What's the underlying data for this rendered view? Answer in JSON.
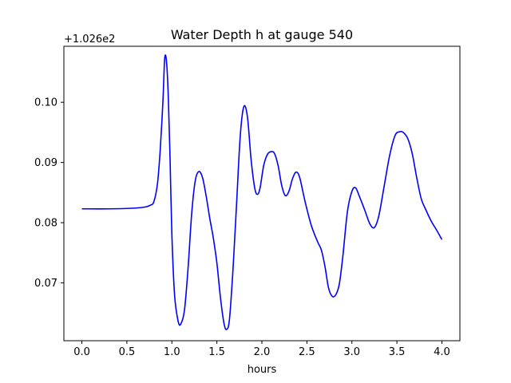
{
  "chart_data": {
    "type": "line",
    "title": "Water Depth h at gauge 540",
    "xlabel": "hours",
    "ylabel": "",
    "offset_label": "+1.026e2",
    "xlim": [
      -0.2,
      4.2
    ],
    "ylim": [
      0.0604,
      0.1093
    ],
    "xticks": [
      0.0,
      0.5,
      1.0,
      1.5,
      2.0,
      2.5,
      3.0,
      3.5,
      4.0
    ],
    "xtick_labels": [
      "0.0",
      "0.5",
      "1.0",
      "1.5",
      "2.0",
      "2.5",
      "3.0",
      "3.5",
      "4.0"
    ],
    "yticks": [
      0.07,
      0.08,
      0.09,
      0.1
    ],
    "ytick_labels": [
      "0.07",
      "0.08",
      "0.09",
      "0.10"
    ],
    "grid": false,
    "series": [
      {
        "color": "#0000ff",
        "x": [
          0.0,
          0.3,
          0.55,
          0.7,
          0.76,
          0.8,
          0.84,
          0.87,
          0.9,
          0.92,
          0.94,
          0.96,
          0.98,
          1.0,
          1.03,
          1.07,
          1.1,
          1.14,
          1.18,
          1.22,
          1.26,
          1.3,
          1.34,
          1.38,
          1.42,
          1.46,
          1.5,
          1.54,
          1.58,
          1.61,
          1.64,
          1.68,
          1.72,
          1.76,
          1.8,
          1.84,
          1.88,
          1.92,
          1.95,
          1.98,
          2.02,
          2.06,
          2.1,
          2.14,
          2.18,
          2.22,
          2.26,
          2.3,
          2.34,
          2.38,
          2.42,
          2.48,
          2.55,
          2.62,
          2.66,
          2.7,
          2.74,
          2.78,
          2.82,
          2.86,
          2.9,
          2.95,
          3.0,
          3.04,
          3.08,
          3.14,
          3.2,
          3.25,
          3.3,
          3.36,
          3.42,
          3.48,
          3.53,
          3.57,
          3.62,
          3.67,
          3.72,
          3.77,
          3.82,
          3.88,
          3.94,
          4.0
        ],
        "y": [
          0.0823,
          0.0823,
          0.0824,
          0.0826,
          0.0829,
          0.0835,
          0.0865,
          0.092,
          0.1,
          0.1072,
          0.1068,
          0.101,
          0.0905,
          0.078,
          0.068,
          0.0636,
          0.0632,
          0.0655,
          0.0725,
          0.0815,
          0.087,
          0.0885,
          0.0875,
          0.0845,
          0.0808,
          0.0775,
          0.0733,
          0.0675,
          0.0632,
          0.0623,
          0.064,
          0.0725,
          0.0835,
          0.0945,
          0.0993,
          0.0975,
          0.0905,
          0.0858,
          0.0847,
          0.0858,
          0.0895,
          0.0913,
          0.0918,
          0.0915,
          0.0895,
          0.0862,
          0.0845,
          0.0852,
          0.0873,
          0.0884,
          0.0875,
          0.0835,
          0.0795,
          0.0768,
          0.0755,
          0.0728,
          0.0692,
          0.0678,
          0.068,
          0.0698,
          0.0745,
          0.0818,
          0.0852,
          0.0858,
          0.0845,
          0.0822,
          0.0798,
          0.0792,
          0.0812,
          0.0862,
          0.0912,
          0.0945,
          0.0951,
          0.095,
          0.094,
          0.0915,
          0.0875,
          0.084,
          0.0822,
          0.0803,
          0.0788,
          0.0772
        ]
      }
    ]
  }
}
